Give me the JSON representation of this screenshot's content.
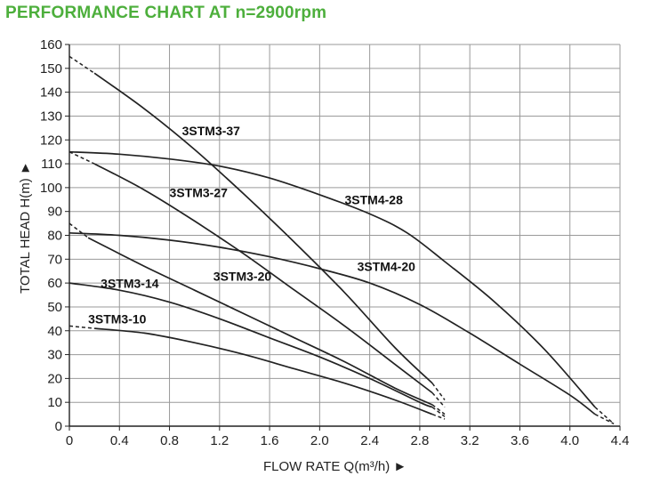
{
  "chart_data": {
    "type": "line",
    "title": "PERFORMANCE CHART AT n=2900rpm",
    "xlabel": "FLOW RATE Q(m³/h) ►",
    "ylabel": "TOTAL HEAD H(m) ►",
    "xlim": [
      0,
      4.4
    ],
    "ylim": [
      0,
      160
    ],
    "xticks": [
      "0",
      "0.4",
      "0.8",
      "1.2",
      "1.6",
      "2.0",
      "2.4",
      "2.8",
      "3.2",
      "3.6",
      "4.0",
      "4.4"
    ],
    "yticks": [
      "0",
      "10",
      "20",
      "30",
      "40",
      "50",
      "60",
      "70",
      "80",
      "90",
      "100",
      "110",
      "120",
      "130",
      "140",
      "150",
      "160"
    ],
    "grid": true,
    "series": [
      {
        "name": "3STM3-37",
        "dashed_start": [
          [
            0,
            155
          ],
          [
            0.2,
            148
          ]
        ],
        "values": [
          [
            0.2,
            148
          ],
          [
            0.6,
            133
          ],
          [
            1.0,
            116
          ],
          [
            1.4,
            97
          ],
          [
            1.8,
            77
          ],
          [
            2.2,
            56
          ],
          [
            2.6,
            33
          ],
          [
            2.9,
            18
          ]
        ],
        "dashed_end": [
          [
            2.9,
            18
          ],
          [
            3.0,
            11
          ]
        ]
      },
      {
        "name": "3STM3-27",
        "dashed_start": [
          [
            0,
            115
          ],
          [
            0.2,
            110
          ]
        ],
        "values": [
          [
            0.2,
            110
          ],
          [
            0.6,
            99
          ],
          [
            1.0,
            86
          ],
          [
            1.4,
            72
          ],
          [
            1.8,
            57
          ],
          [
            2.2,
            42
          ],
          [
            2.6,
            26
          ],
          [
            2.9,
            14
          ]
        ],
        "dashed_end": [
          [
            2.9,
            14
          ],
          [
            3.0,
            8
          ]
        ]
      },
      {
        "name": "3STM3-20",
        "dashed_start": [
          [
            0,
            85
          ],
          [
            0.15,
            79
          ]
        ],
        "values": [
          [
            0.15,
            79
          ],
          [
            0.6,
            67
          ],
          [
            1.0,
            57
          ],
          [
            1.4,
            47
          ],
          [
            1.8,
            37
          ],
          [
            2.2,
            27
          ],
          [
            2.6,
            16
          ],
          [
            2.9,
            9
          ]
        ],
        "dashed_end": [
          [
            2.9,
            9
          ],
          [
            3.0,
            5
          ]
        ]
      },
      {
        "name": "3STM3-14",
        "values": [
          [
            0,
            60
          ],
          [
            0.4,
            57
          ],
          [
            0.8,
            52
          ],
          [
            1.2,
            45
          ],
          [
            1.6,
            37
          ],
          [
            2.0,
            29
          ],
          [
            2.4,
            20
          ],
          [
            2.8,
            10
          ],
          [
            2.9,
            8
          ]
        ],
        "dashed_end": [
          [
            2.9,
            8
          ],
          [
            3.0,
            4
          ]
        ]
      },
      {
        "name": "3STM3-10",
        "dashed_start": [
          [
            0,
            42
          ],
          [
            0.2,
            41
          ]
        ],
        "values": [
          [
            0.2,
            41
          ],
          [
            0.6,
            39
          ],
          [
            1.0,
            35
          ],
          [
            1.4,
            30
          ],
          [
            1.8,
            24
          ],
          [
            2.2,
            18
          ],
          [
            2.6,
            11
          ],
          [
            2.9,
            5
          ]
        ],
        "dashed_end": [
          [
            2.9,
            5
          ],
          [
            3.0,
            3
          ]
        ]
      },
      {
        "name": "3STM4-28",
        "values": [
          [
            0,
            115
          ],
          [
            0.4,
            114
          ],
          [
            0.8,
            112
          ],
          [
            1.2,
            109
          ],
          [
            1.6,
            104
          ],
          [
            2.0,
            97
          ],
          [
            2.4,
            89
          ],
          [
            2.7,
            81
          ],
          [
            3.0,
            69
          ],
          [
            3.4,
            52
          ],
          [
            3.8,
            32
          ],
          [
            4.2,
            8
          ]
        ],
        "dashed_end": [
          [
            4.2,
            8
          ],
          [
            4.35,
            1
          ]
        ]
      },
      {
        "name": "3STM4-20",
        "values": [
          [
            0,
            81
          ],
          [
            0.4,
            80
          ],
          [
            0.8,
            78
          ],
          [
            1.2,
            75
          ],
          [
            1.6,
            71
          ],
          [
            2.0,
            66
          ],
          [
            2.4,
            60
          ],
          [
            2.8,
            51
          ],
          [
            3.2,
            39
          ],
          [
            3.6,
            26
          ],
          [
            4.0,
            13
          ],
          [
            4.2,
            5
          ]
        ],
        "dashed_end": [
          [
            4.2,
            5
          ],
          [
            4.35,
            1
          ]
        ]
      }
    ],
    "labels": [
      {
        "text": "3STM3-37",
        "x": 0.9,
        "y": 122
      },
      {
        "text": "3STM3-27",
        "x": 0.8,
        "y": 96
      },
      {
        "text": "3STM3-20",
        "x": 1.15,
        "y": 61
      },
      {
        "text": "3STM3-14",
        "x": 0.25,
        "y": 58
      },
      {
        "text": "3STM3-10",
        "x": 0.15,
        "y": 43
      },
      {
        "text": "3STM4-28",
        "x": 2.2,
        "y": 93
      },
      {
        "text": "3STM4-20",
        "x": 2.3,
        "y": 65
      }
    ],
    "line_color": "#222222",
    "title_color": "#4daf3c"
  }
}
